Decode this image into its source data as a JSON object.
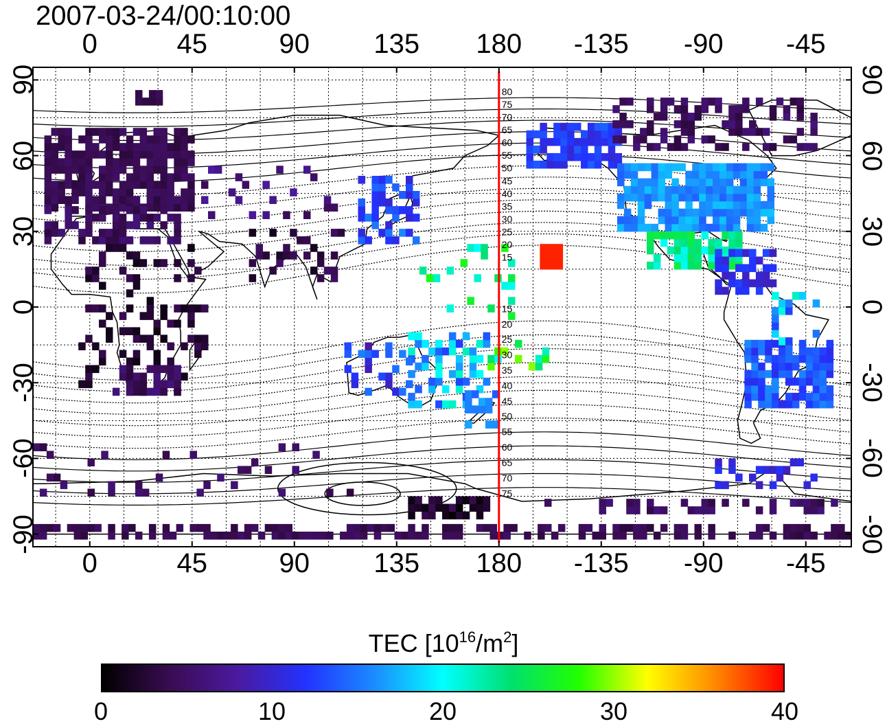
{
  "title": "2007-03-24/00:10:00",
  "map": {
    "x_ticks": [
      "0",
      "45",
      "90",
      "135",
      "180",
      "-135",
      "-90",
      "-45"
    ],
    "x_tick_lons": [
      0,
      45,
      90,
      135,
      180,
      225,
      270,
      315
    ],
    "y_ticks": [
      "90",
      "60",
      "30",
      "0",
      "-30",
      "-60",
      "-90"
    ],
    "y_tick_lats": [
      90,
      60,
      30,
      0,
      -30,
      -60,
      -90
    ],
    "lon_range": [
      -25,
      335
    ],
    "lat_range": [
      -95,
      95
    ],
    "meridian_lon": 180,
    "meridian_color": "#ff0000",
    "contour_labels_north": [
      "80",
      "75",
      "70",
      "65",
      "60",
      "55",
      "50",
      "45",
      "40",
      "35",
      "30",
      "25",
      "20",
      "15"
    ],
    "contour_labels_south": [
      "15",
      "20",
      "25",
      "30",
      "35",
      "40",
      "45",
      "50",
      "55",
      "60",
      "65",
      "70",
      "75"
    ]
  },
  "colorbar": {
    "title_main": "TEC  [10",
    "title_exp1": "16",
    "title_mid": "/m",
    "title_exp2": "2",
    "title_end": "]",
    "ticks": [
      "0",
      "10",
      "20",
      "30",
      "40"
    ],
    "tick_values": [
      0,
      10,
      20,
      30,
      40
    ],
    "range": [
      0,
      40
    ],
    "colors": [
      "#000000",
      "#3a0c52",
      "#4a1aa0",
      "#2233ff",
      "#1b8cff",
      "#00ffff",
      "#00e070",
      "#22ff00",
      "#ffff00",
      "#ff8800",
      "#ff0000"
    ]
  }
}
